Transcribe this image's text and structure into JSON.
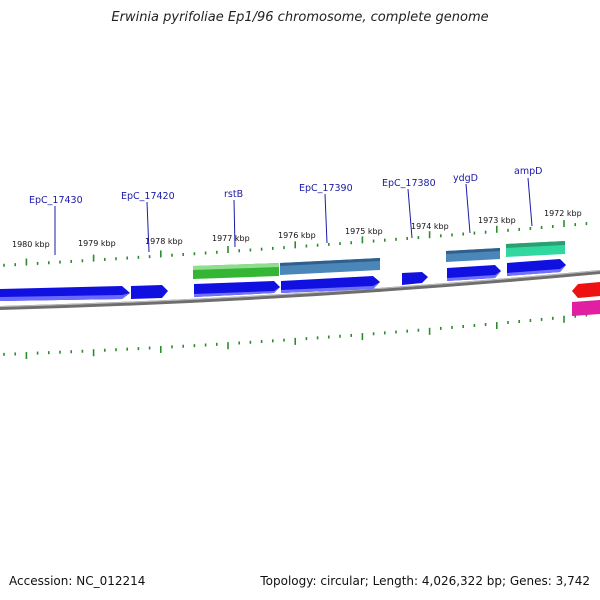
{
  "title": "Erwinia pyrifoliae Ep1/96 chromosome, complete genome",
  "footer": {
    "accession": "Accession: NC_012214",
    "summary": "Topology: circular; Length: 4,026,322 bp; Genes: 3,742"
  },
  "colors": {
    "backbone": "#808080",
    "tick": "#2e8b2e",
    "gene_label": "#1a1aa6",
    "cds": "#1010e0",
    "rrna_or_product_green": "#3cb83c",
    "product_steelblue": "#4a86b8",
    "product_teal": "#30d8a0",
    "other_red": "#ee1111",
    "other_magenta": "#e020a0"
  },
  "scale": {
    "ticks": [
      {
        "label": "1980 kbp",
        "kbp": 1980
      },
      {
        "label": "1979 kbp",
        "kbp": 1979
      },
      {
        "label": "1978 kbp",
        "kbp": 1978
      },
      {
        "label": "1977 kbp",
        "kbp": 1977
      },
      {
        "label": "1976 kbp",
        "kbp": 1976
      },
      {
        "label": "1975 kbp",
        "kbp": 1975
      },
      {
        "label": "1974 kbp",
        "kbp": 1974
      },
      {
        "label": "1973 kbp",
        "kbp": 1973
      },
      {
        "label": "1972 kbp",
        "kbp": 1972
      }
    ]
  },
  "genes": [
    {
      "label": "EpC_17430"
    },
    {
      "label": "EpC_17420"
    },
    {
      "label": "rstB"
    },
    {
      "label": "EpC_17390"
    },
    {
      "label": "EpC_17380"
    },
    {
      "label": "ydgD"
    },
    {
      "label": "ampD"
    }
  ]
}
